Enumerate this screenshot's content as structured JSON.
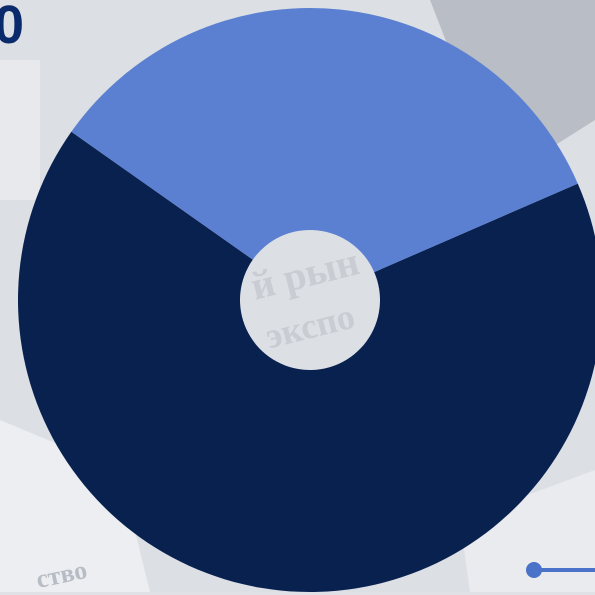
{
  "chart_data": {
    "type": "pie",
    "title": "",
    "slices": [
      {
        "value": 66.3,
        "color": "#08214f"
      },
      {
        "value": 33.7,
        "color": "#5b80d1"
      }
    ]
  },
  "background": {
    "words": [
      "й рын",
      "экспо",
      "ство"
    ],
    "corner_fragment": "0"
  },
  "colors": {
    "dark_slice": "#08214f",
    "light_slice": "#5b80d1",
    "connector": "#4a72c9"
  }
}
